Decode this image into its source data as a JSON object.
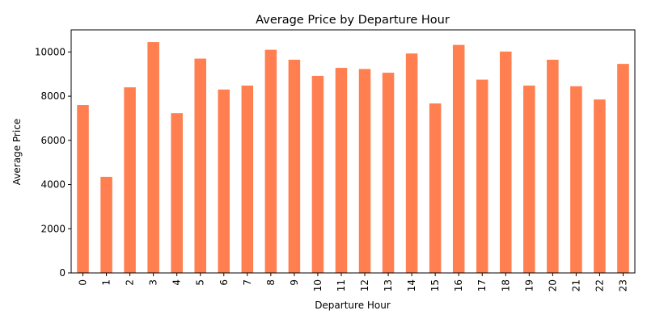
{
  "chart_data": {
    "type": "bar",
    "title": "Average Price by Departure Hour",
    "xlabel": "Departure Hour",
    "ylabel": "Average Price",
    "categories": [
      "0",
      "1",
      "2",
      "3",
      "4",
      "5",
      "6",
      "7",
      "8",
      "9",
      "10",
      "11",
      "12",
      "13",
      "14",
      "15",
      "16",
      "17",
      "18",
      "19",
      "20",
      "21",
      "22",
      "23"
    ],
    "values": [
      7600,
      4350,
      8400,
      10450,
      7230,
      9700,
      8300,
      8480,
      10100,
      9650,
      8920,
      9280,
      9230,
      9060,
      9930,
      7670,
      10320,
      8750,
      10020,
      8480,
      9650,
      8450,
      7850,
      9460
    ],
    "ylim": [
      0,
      11000
    ],
    "yticks": [
      0,
      2000,
      4000,
      6000,
      8000,
      10000
    ],
    "bar_color": "#ff7f50",
    "grid": false,
    "legend": null
  }
}
